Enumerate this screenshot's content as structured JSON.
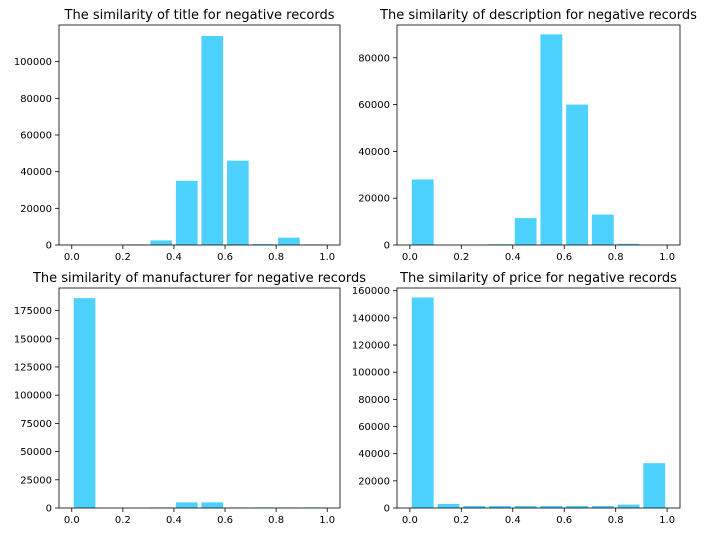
{
  "chart_data": [
    {
      "type": "bar",
      "title": "The similarity of title for negative records",
      "xlabel": "",
      "ylabel": "",
      "bar_color": "#4dd2ff",
      "bin_edges": [
        0,
        0.1,
        0.2,
        0.3,
        0.4,
        0.5,
        0.6,
        0.7,
        0.8,
        0.9,
        1.0
      ],
      "values": [
        0,
        0,
        300,
        2500,
        35000,
        114000,
        46000,
        500,
        4000,
        300
      ],
      "xlim": [
        -0.05,
        1.05
      ],
      "ylim": [
        0,
        120000
      ],
      "xticks": [
        0.0,
        0.2,
        0.4,
        0.6,
        0.8,
        1.0
      ],
      "xtick_labels": [
        "0.0",
        "0.2",
        "0.4",
        "0.6",
        "0.8",
        "1.0"
      ],
      "yticks": [
        0,
        20000,
        40000,
        60000,
        80000,
        100000
      ],
      "ytick_labels": [
        "0",
        "20000",
        "40000",
        "60000",
        "80000",
        "100000"
      ],
      "grid": false
    },
    {
      "type": "bar",
      "title": "The similarity of description for negative records",
      "xlabel": "",
      "ylabel": "",
      "bar_color": "#4dd2ff",
      "bin_edges": [
        0,
        0.1,
        0.2,
        0.3,
        0.4,
        0.5,
        0.6,
        0.7,
        0.8,
        0.9,
        1.0
      ],
      "values": [
        28000,
        0,
        0,
        300,
        11500,
        90000,
        60000,
        13000,
        500,
        0
      ],
      "xlim": [
        -0.05,
        1.05
      ],
      "ylim": [
        0,
        94000
      ],
      "xticks": [
        0.0,
        0.2,
        0.4,
        0.6,
        0.8,
        1.0
      ],
      "xtick_labels": [
        "0.0",
        "0.2",
        "0.4",
        "0.6",
        "0.8",
        "1.0"
      ],
      "yticks": [
        0,
        20000,
        40000,
        60000,
        80000
      ],
      "ytick_labels": [
        "0",
        "20000",
        "40000",
        "60000",
        "80000"
      ],
      "grid": false
    },
    {
      "type": "bar",
      "title": "The similarity of manufacturer for negative records",
      "xlabel": "",
      "ylabel": "",
      "bar_color": "#4dd2ff",
      "bin_edges": [
        0,
        0.1,
        0.2,
        0.3,
        0.4,
        0.5,
        0.6,
        0.7,
        0.8,
        0.9,
        1.0
      ],
      "values": [
        186000,
        0,
        0,
        500,
        5000,
        5000,
        500,
        500,
        500,
        500
      ],
      "xlim": [
        -0.05,
        1.05
      ],
      "ylim": [
        0,
        195000
      ],
      "xticks": [
        0.0,
        0.2,
        0.4,
        0.6,
        0.8,
        1.0
      ],
      "xtick_labels": [
        "0.0",
        "0.2",
        "0.4",
        "0.6",
        "0.8",
        "1.0"
      ],
      "yticks": [
        0,
        25000,
        50000,
        75000,
        100000,
        125000,
        150000,
        175000
      ],
      "ytick_labels": [
        "0",
        "25000",
        "50000",
        "75000",
        "100000",
        "125000",
        "150000",
        "175000"
      ],
      "grid": false
    },
    {
      "type": "bar",
      "title": "The similarity of price for negative records",
      "xlabel": "",
      "ylabel": "",
      "bar_color": "#4dd2ff",
      "bin_edges": [
        0,
        0.1,
        0.2,
        0.3,
        0.4,
        0.5,
        0.6,
        0.7,
        0.8,
        0.9,
        1.0
      ],
      "values": [
        155000,
        3000,
        1500,
        1500,
        1500,
        1500,
        1500,
        1500,
        2500,
        33000
      ],
      "xlim": [
        -0.05,
        1.05
      ],
      "ylim": [
        0,
        162000
      ],
      "xticks": [
        0.0,
        0.2,
        0.4,
        0.6,
        0.8,
        1.0
      ],
      "xtick_labels": [
        "0.0",
        "0.2",
        "0.4",
        "0.6",
        "0.8",
        "1.0"
      ],
      "yticks": [
        0,
        20000,
        40000,
        60000,
        80000,
        100000,
        120000,
        140000,
        160000
      ],
      "ytick_labels": [
        "0",
        "20000",
        "40000",
        "60000",
        "80000",
        "100000",
        "120000",
        "140000",
        "160000"
      ],
      "grid": false
    }
  ]
}
